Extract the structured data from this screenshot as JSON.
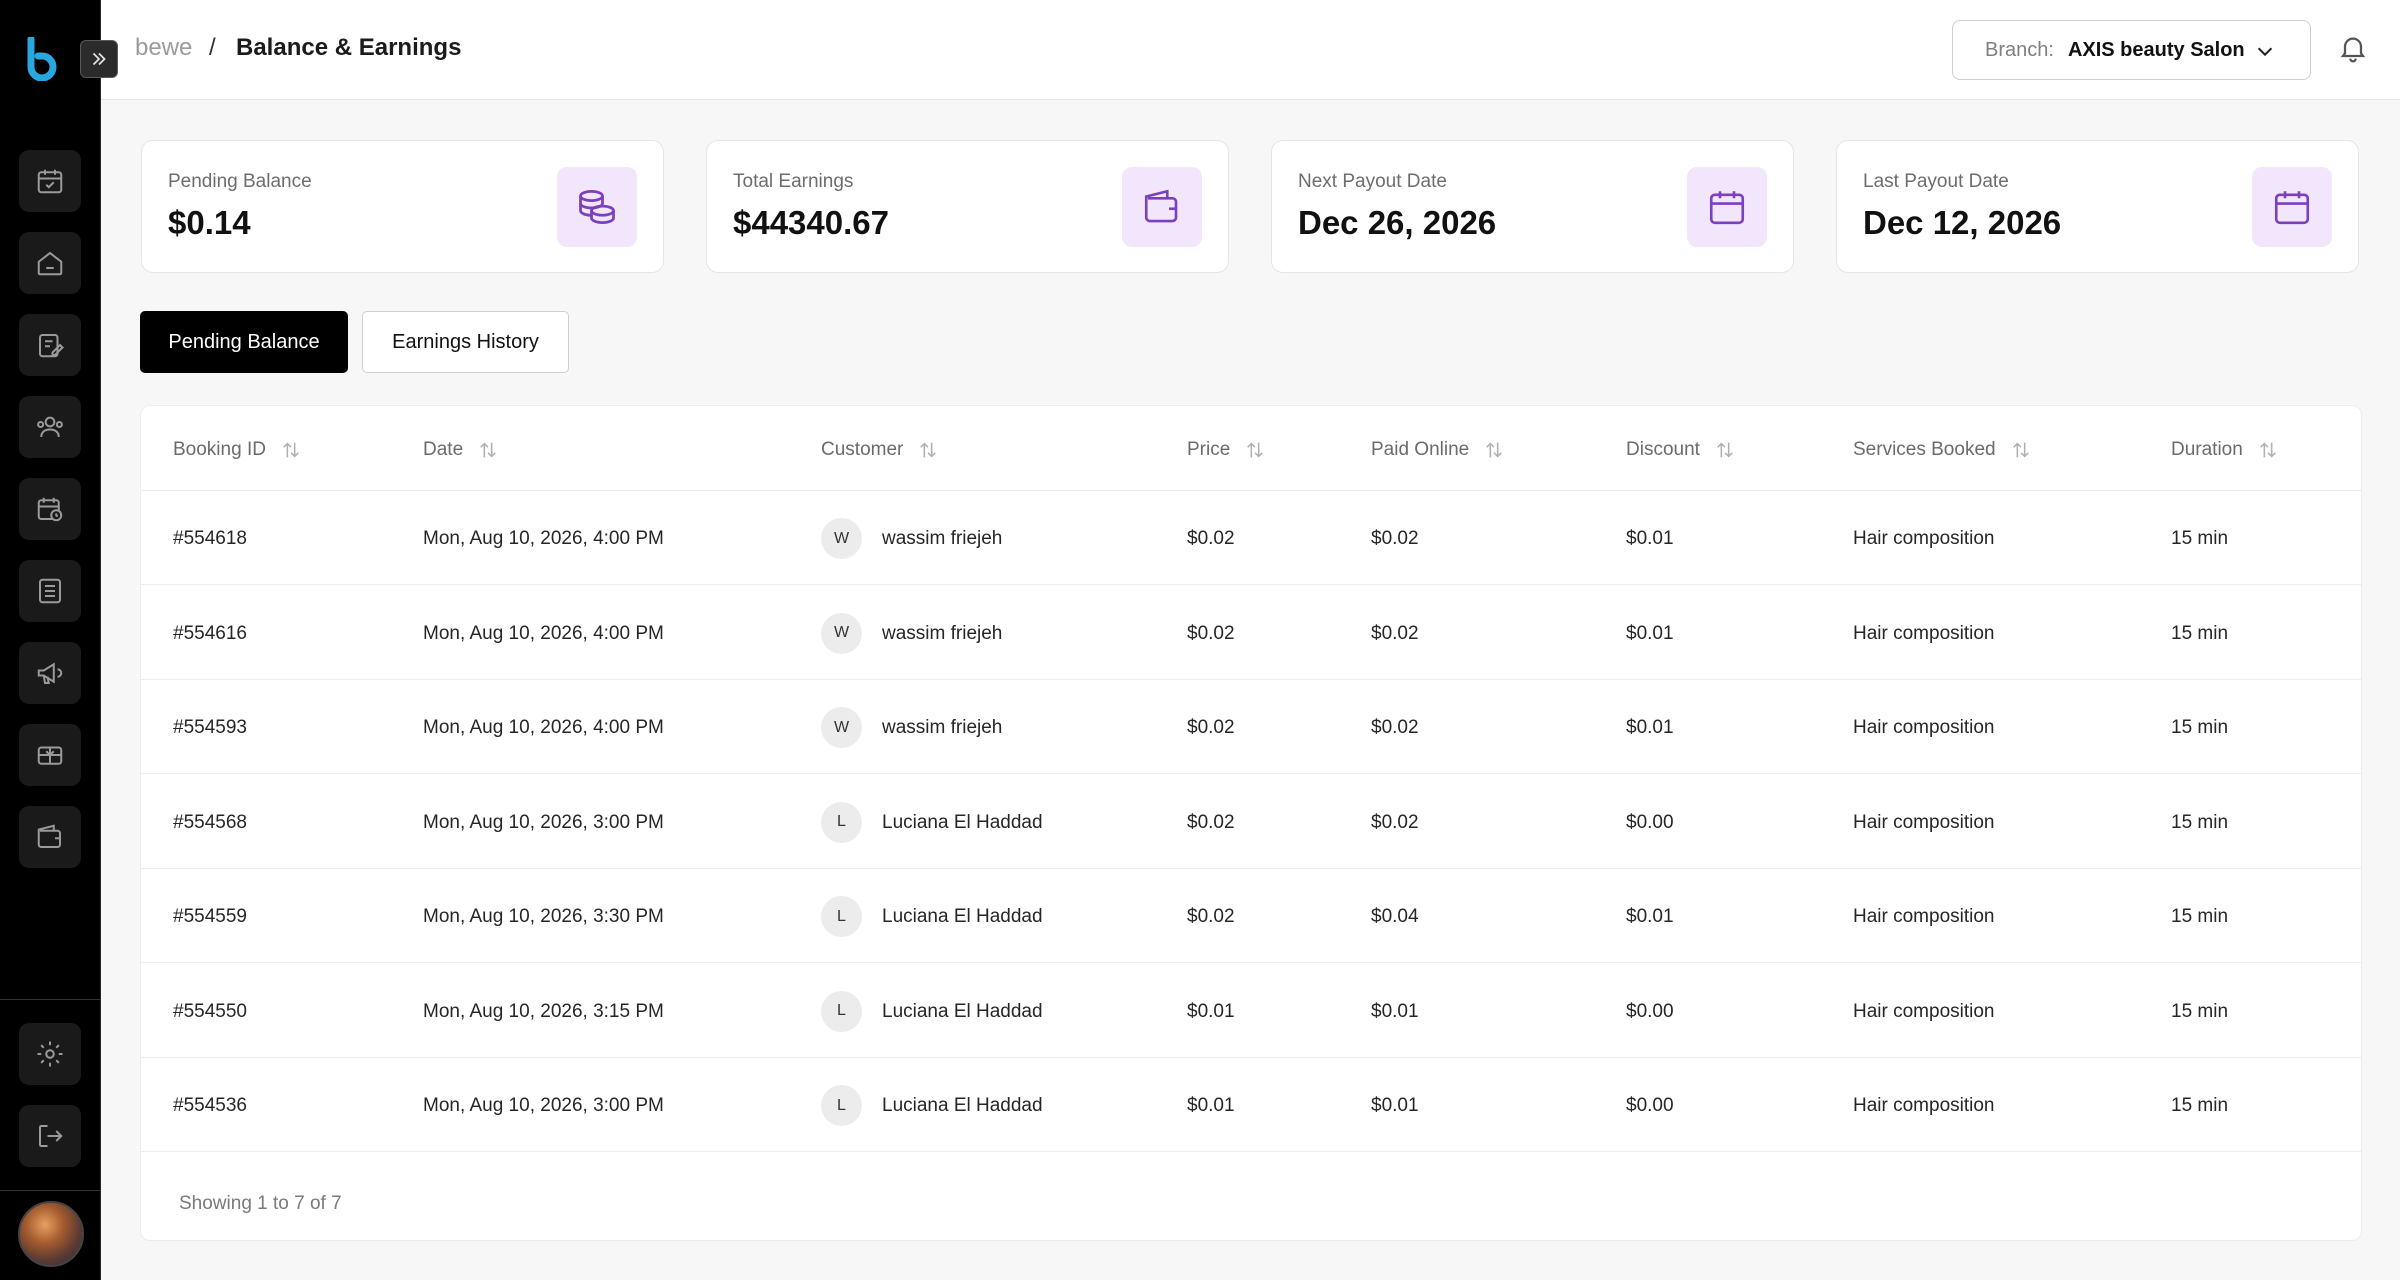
{
  "sidebar": {
    "logo_icon": "bewe-logo",
    "items": [
      {
        "icon": "calendar-check-icon"
      },
      {
        "icon": "home-icon"
      },
      {
        "icon": "clipboard-edit-icon"
      },
      {
        "icon": "users-icon"
      },
      {
        "icon": "calendar-clock-icon"
      },
      {
        "icon": "list-icon"
      },
      {
        "icon": "megaphone-icon"
      },
      {
        "icon": "gift-card-icon"
      },
      {
        "icon": "wallet-icon"
      }
    ],
    "bottom_items": [
      {
        "icon": "gear-icon"
      },
      {
        "icon": "logout-icon"
      }
    ]
  },
  "breadcrumb": {
    "root": "bewe",
    "separator": "/",
    "current": "Balance & Earnings"
  },
  "branch": {
    "label": "Branch:",
    "value": "AXIS beauty Salon"
  },
  "cards": [
    {
      "label": "Pending Balance",
      "value": "$0.14",
      "icon": "coins-stack-icon"
    },
    {
      "label": "Total Earnings",
      "value": "$44340.67",
      "icon": "wallet-icon"
    },
    {
      "label": "Next Payout Date",
      "value": "Dec 26, 2026",
      "icon": "calendar-icon"
    },
    {
      "label": "Last Payout Date",
      "value": "Dec 12, 2026",
      "icon": "calendar-icon"
    }
  ],
  "tabs": [
    {
      "label": "Pending Balance",
      "active": true
    },
    {
      "label": "Earnings History",
      "active": false
    }
  ],
  "table": {
    "columns": [
      "Booking ID",
      "Date",
      "Customer",
      "Price",
      "Paid Online",
      "Discount",
      "Services Booked",
      "Duration"
    ],
    "rows": [
      {
        "id": "#554618",
        "date": "Mon, Aug 10, 2026, 4:00 PM",
        "initial": "W",
        "customer": "wassim friejeh",
        "price": "$0.02",
        "paid": "$0.02",
        "discount": "$0.01",
        "service": "Hair composition",
        "duration": "15 min"
      },
      {
        "id": "#554616",
        "date": "Mon, Aug 10, 2026, 4:00 PM",
        "initial": "W",
        "customer": "wassim friejeh",
        "price": "$0.02",
        "paid": "$0.02",
        "discount": "$0.01",
        "service": "Hair composition",
        "duration": "15 min"
      },
      {
        "id": "#554593",
        "date": "Mon, Aug 10, 2026, 4:00 PM",
        "initial": "W",
        "customer": "wassim friejeh",
        "price": "$0.02",
        "paid": "$0.02",
        "discount": "$0.01",
        "service": "Hair composition",
        "duration": "15 min"
      },
      {
        "id": "#554568",
        "date": "Mon, Aug 10, 2026, 3:00 PM",
        "initial": "L",
        "customer": "Luciana El Haddad",
        "price": "$0.02",
        "paid": "$0.02",
        "discount": "$0.00",
        "service": "Hair composition",
        "duration": "15 min"
      },
      {
        "id": "#554559",
        "date": "Mon, Aug 10, 2026, 3:30 PM",
        "initial": "L",
        "customer": "Luciana El Haddad",
        "price": "$0.02",
        "paid": "$0.04",
        "discount": "$0.01",
        "service": "Hair composition",
        "duration": "15 min"
      },
      {
        "id": "#554550",
        "date": "Mon, Aug 10, 2026, 3:15 PM",
        "initial": "L",
        "customer": "Luciana El Haddad",
        "price": "$0.01",
        "paid": "$0.01",
        "discount": "$0.00",
        "service": "Hair composition",
        "duration": "15 min"
      },
      {
        "id": "#554536",
        "date": "Mon, Aug 10, 2026, 3:00 PM",
        "initial": "L",
        "customer": "Luciana El Haddad",
        "price": "$0.01",
        "paid": "$0.01",
        "discount": "$0.00",
        "service": "Hair composition",
        "duration": "15 min"
      }
    ],
    "footer": "Showing 1 to 7 of 7"
  },
  "colors": {
    "accent_purple": "#7b3fbf",
    "icon_bg": "#f1e6fb",
    "logo_blue": "#29a8e0",
    "sidebar_bg": "#000000"
  }
}
